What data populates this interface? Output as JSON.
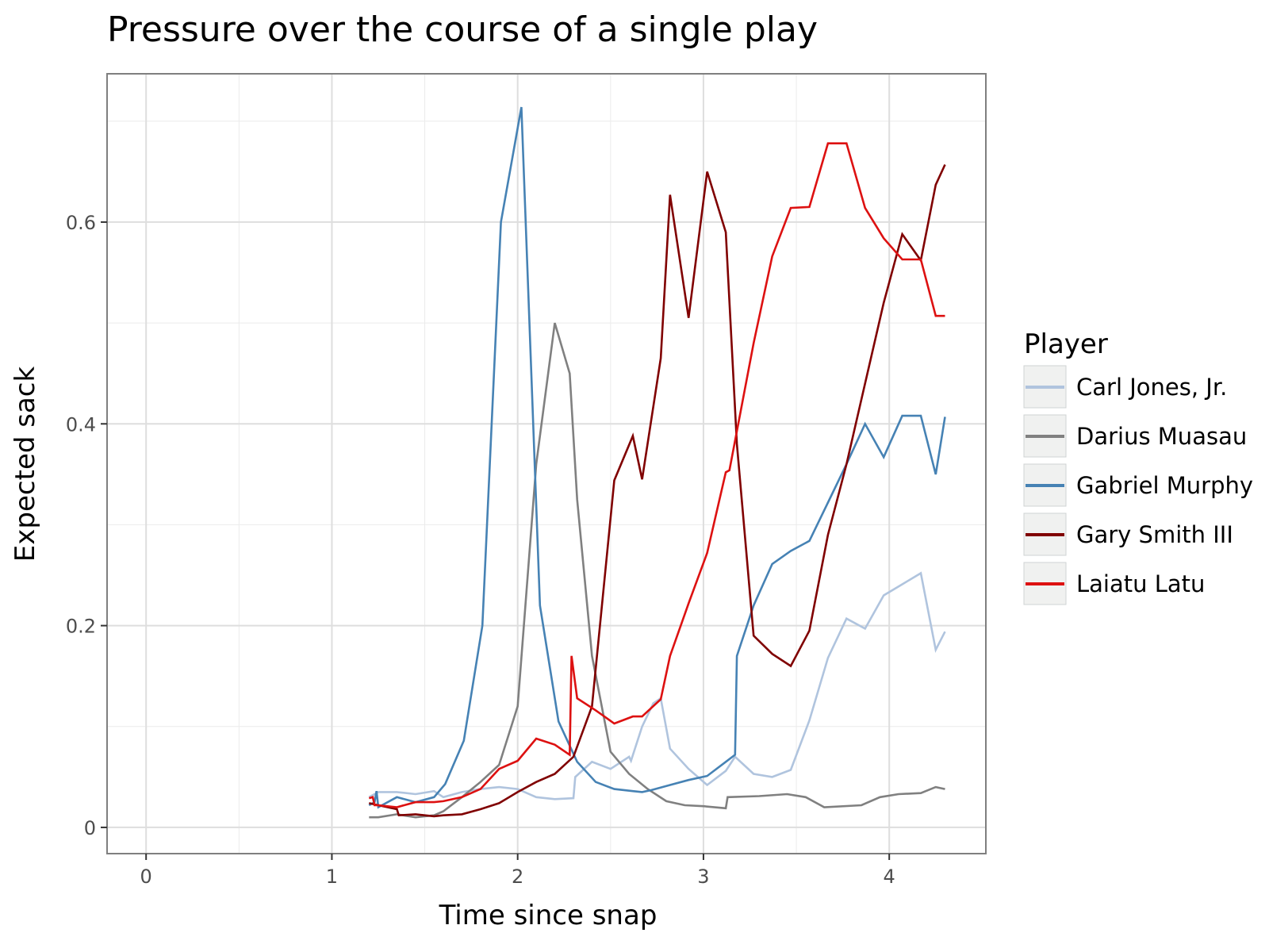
{
  "chart_data": {
    "type": "line",
    "title": "Pressure over the course of a single play",
    "xlabel": "Time since snap",
    "ylabel": "Expected sack",
    "xlim": [
      -0.21,
      4.52
    ],
    "ylim": [
      -0.026,
      0.747
    ],
    "x_ticks": [
      0,
      1,
      2,
      3,
      4
    ],
    "x_tick_labels": [
      "0",
      "1",
      "2",
      "3",
      "4"
    ],
    "y_ticks": [
      0,
      0.2,
      0.4,
      0.6
    ],
    "y_tick_labels": [
      "0",
      "0.2",
      "0.4",
      "0.6"
    ],
    "grid": true,
    "legend": {
      "title": "Player",
      "position": "right"
    },
    "series": [
      {
        "name": "Carl Jones, Jr.",
        "color": "#b0c4de",
        "points": [
          [
            1.2,
            0.03
          ],
          [
            1.25,
            0.035
          ],
          [
            1.35,
            0.035
          ],
          [
            1.45,
            0.033
          ],
          [
            1.55,
            0.036
          ],
          [
            1.6,
            0.03
          ],
          [
            1.7,
            0.035
          ],
          [
            1.8,
            0.038
          ],
          [
            1.9,
            0.04
          ],
          [
            2.0,
            0.038
          ],
          [
            2.1,
            0.03
          ],
          [
            2.2,
            0.028
          ],
          [
            2.3,
            0.029
          ],
          [
            2.31,
            0.05
          ],
          [
            2.4,
            0.065
          ],
          [
            2.5,
            0.058
          ],
          [
            2.6,
            0.07
          ],
          [
            2.61,
            0.066
          ],
          [
            2.67,
            0.1
          ],
          [
            2.73,
            0.123
          ],
          [
            2.77,
            0.128
          ],
          [
            2.82,
            0.078
          ],
          [
            2.92,
            0.058
          ],
          [
            3.02,
            0.042
          ],
          [
            3.12,
            0.056
          ],
          [
            3.17,
            0.07
          ],
          [
            3.27,
            0.053
          ],
          [
            3.37,
            0.05
          ],
          [
            3.47,
            0.057
          ],
          [
            3.57,
            0.106
          ],
          [
            3.67,
            0.168
          ],
          [
            3.77,
            0.207
          ],
          [
            3.87,
            0.197
          ],
          [
            3.97,
            0.23
          ],
          [
            4.07,
            0.241
          ],
          [
            4.17,
            0.252
          ],
          [
            4.25,
            0.176
          ],
          [
            4.3,
            0.194
          ]
        ]
      },
      {
        "name": "Darius Muasau",
        "color": "#808080",
        "points": [
          [
            1.2,
            0.01
          ],
          [
            1.25,
            0.01
          ],
          [
            1.35,
            0.013
          ],
          [
            1.45,
            0.01
          ],
          [
            1.55,
            0.012
          ],
          [
            1.6,
            0.016
          ],
          [
            1.7,
            0.03
          ],
          [
            1.8,
            0.045
          ],
          [
            1.9,
            0.062
          ],
          [
            2.0,
            0.12
          ],
          [
            2.1,
            0.36
          ],
          [
            2.2,
            0.5
          ],
          [
            2.28,
            0.45
          ],
          [
            2.32,
            0.325
          ],
          [
            2.4,
            0.17
          ],
          [
            2.5,
            0.075
          ],
          [
            2.6,
            0.053
          ],
          [
            2.7,
            0.038
          ],
          [
            2.8,
            0.026
          ],
          [
            2.9,
            0.022
          ],
          [
            3.0,
            0.021
          ],
          [
            3.12,
            0.019
          ],
          [
            3.13,
            0.03
          ],
          [
            3.3,
            0.031
          ],
          [
            3.45,
            0.033
          ],
          [
            3.55,
            0.03
          ],
          [
            3.65,
            0.02
          ],
          [
            3.85,
            0.022
          ],
          [
            3.95,
            0.03
          ],
          [
            4.05,
            0.033
          ],
          [
            4.17,
            0.034
          ],
          [
            4.25,
            0.04
          ],
          [
            4.3,
            0.038
          ]
        ]
      },
      {
        "name": "Gabriel Murphy",
        "color": "#4682b4",
        "points": [
          [
            1.2,
            0.022
          ],
          [
            1.23,
            0.025
          ],
          [
            1.24,
            0.036
          ],
          [
            1.25,
            0.02
          ],
          [
            1.35,
            0.03
          ],
          [
            1.45,
            0.025
          ],
          [
            1.55,
            0.03
          ],
          [
            1.61,
            0.043
          ],
          [
            1.71,
            0.086
          ],
          [
            1.81,
            0.2
          ],
          [
            1.91,
            0.6
          ],
          [
            2.02,
            0.714
          ],
          [
            2.12,
            0.22
          ],
          [
            2.22,
            0.105
          ],
          [
            2.32,
            0.065
          ],
          [
            2.42,
            0.045
          ],
          [
            2.52,
            0.038
          ],
          [
            2.62,
            0.036
          ],
          [
            2.67,
            0.035
          ],
          [
            2.72,
            0.037
          ],
          [
            2.82,
            0.042
          ],
          [
            2.92,
            0.047
          ],
          [
            3.02,
            0.051
          ],
          [
            3.12,
            0.065
          ],
          [
            3.17,
            0.072
          ],
          [
            3.18,
            0.17
          ],
          [
            3.27,
            0.22
          ],
          [
            3.37,
            0.261
          ],
          [
            3.47,
            0.274
          ],
          [
            3.57,
            0.284
          ],
          [
            3.67,
            0.322
          ],
          [
            3.77,
            0.36
          ],
          [
            3.87,
            0.4
          ],
          [
            3.97,
            0.367
          ],
          [
            4.07,
            0.408
          ],
          [
            4.17,
            0.408
          ],
          [
            4.25,
            0.35
          ],
          [
            4.3,
            0.407
          ]
        ]
      },
      {
        "name": "Gary Smith III",
        "color": "#800000",
        "points": [
          [
            1.2,
            0.024
          ],
          [
            1.25,
            0.022
          ],
          [
            1.35,
            0.018
          ],
          [
            1.36,
            0.012
          ],
          [
            1.45,
            0.013
          ],
          [
            1.55,
            0.011
          ],
          [
            1.6,
            0.012
          ],
          [
            1.7,
            0.013
          ],
          [
            1.8,
            0.018
          ],
          [
            1.9,
            0.024
          ],
          [
            2.0,
            0.035
          ],
          [
            2.1,
            0.045
          ],
          [
            2.2,
            0.053
          ],
          [
            2.3,
            0.07
          ],
          [
            2.4,
            0.12
          ],
          [
            2.52,
            0.344
          ],
          [
            2.62,
            0.388
          ],
          [
            2.67,
            0.345
          ],
          [
            2.77,
            0.465
          ],
          [
            2.82,
            0.627
          ],
          [
            2.92,
            0.505
          ],
          [
            3.02,
            0.65
          ],
          [
            3.12,
            0.59
          ],
          [
            3.18,
            0.38
          ],
          [
            3.27,
            0.19
          ],
          [
            3.37,
            0.172
          ],
          [
            3.47,
            0.16
          ],
          [
            3.57,
            0.195
          ],
          [
            3.67,
            0.29
          ],
          [
            3.77,
            0.36
          ],
          [
            3.87,
            0.44
          ],
          [
            3.97,
            0.52
          ],
          [
            4.07,
            0.588
          ],
          [
            4.17,
            0.562
          ],
          [
            4.25,
            0.637
          ],
          [
            4.3,
            0.657
          ]
        ]
      },
      {
        "name": "Laiatu Latu",
        "color": "#dd1111",
        "points": [
          [
            1.2,
            0.029
          ],
          [
            1.22,
            0.03
          ],
          [
            1.23,
            0.022
          ],
          [
            1.25,
            0.022
          ],
          [
            1.35,
            0.02
          ],
          [
            1.45,
            0.025
          ],
          [
            1.55,
            0.025
          ],
          [
            1.6,
            0.026
          ],
          [
            1.7,
            0.03
          ],
          [
            1.8,
            0.038
          ],
          [
            1.9,
            0.058
          ],
          [
            2.0,
            0.066
          ],
          [
            2.1,
            0.088
          ],
          [
            2.2,
            0.082
          ],
          [
            2.28,
            0.072
          ],
          [
            2.29,
            0.17
          ],
          [
            2.32,
            0.128
          ],
          [
            2.42,
            0.116
          ],
          [
            2.52,
            0.103
          ],
          [
            2.62,
            0.11
          ],
          [
            2.67,
            0.11
          ],
          [
            2.77,
            0.127
          ],
          [
            2.82,
            0.17
          ],
          [
            2.92,
            0.222
          ],
          [
            3.02,
            0.272
          ],
          [
            3.12,
            0.352
          ],
          [
            3.14,
            0.354
          ],
          [
            3.27,
            0.48
          ],
          [
            3.37,
            0.566
          ],
          [
            3.47,
            0.614
          ],
          [
            3.57,
            0.615
          ],
          [
            3.67,
            0.678
          ],
          [
            3.77,
            0.678
          ],
          [
            3.87,
            0.614
          ],
          [
            3.97,
            0.584
          ],
          [
            4.07,
            0.563
          ],
          [
            4.17,
            0.563
          ],
          [
            4.25,
            0.507
          ],
          [
            4.3,
            0.507
          ]
        ]
      }
    ]
  }
}
